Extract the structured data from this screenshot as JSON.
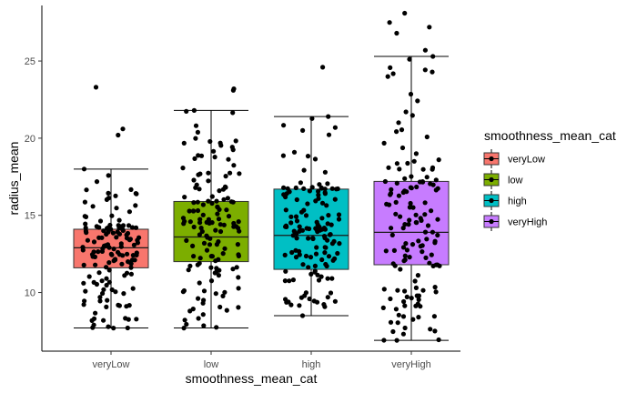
{
  "chart_data": {
    "type": "boxplot",
    "xlabel": "smoothness_mean_cat",
    "ylabel": "radius_mean",
    "categories": [
      "veryLow",
      "low",
      "high",
      "veryHigh"
    ],
    "ylim": [
      6.2,
      28.6
    ],
    "yticks": [
      10,
      15,
      20,
      25
    ],
    "grid": false,
    "legend": {
      "title": "smoothness_mean_cat",
      "position": "right",
      "entries": [
        "veryLow",
        "low",
        "high",
        "veryHigh"
      ]
    },
    "colors": [
      "#F8766D",
      "#7CAE00",
      "#00BFC4",
      "#C77CFF"
    ],
    "boxes": [
      {
        "category": "veryLow",
        "whisker_low": 7.7,
        "q1": 11.6,
        "median": 12.9,
        "q3": 14.1,
        "whisker_high": 18.0
      },
      {
        "category": "low",
        "whisker_low": 7.7,
        "q1": 12.0,
        "median": 13.6,
        "q3": 15.9,
        "whisker_high": 21.8
      },
      {
        "category": "high",
        "whisker_low": 8.5,
        "q1": 11.5,
        "median": 13.7,
        "q3": 16.7,
        "whisker_high": 21.4
      },
      {
        "category": "veryHigh",
        "whisker_low": 6.9,
        "q1": 11.8,
        "median": 13.9,
        "q3": 17.2,
        "whisker_high": 25.3
      }
    ],
    "outliers": [
      {
        "category": "veryLow",
        "values": [
          23.3,
          20.6,
          20.2
        ]
      },
      {
        "category": "low",
        "values": [
          23.2,
          23.1
        ]
      },
      {
        "category": "high",
        "values": [
          24.6
        ]
      },
      {
        "category": "veryHigh",
        "values": [
          28.1,
          27.5,
          27.2,
          26.8,
          25.7
        ]
      }
    ]
  }
}
